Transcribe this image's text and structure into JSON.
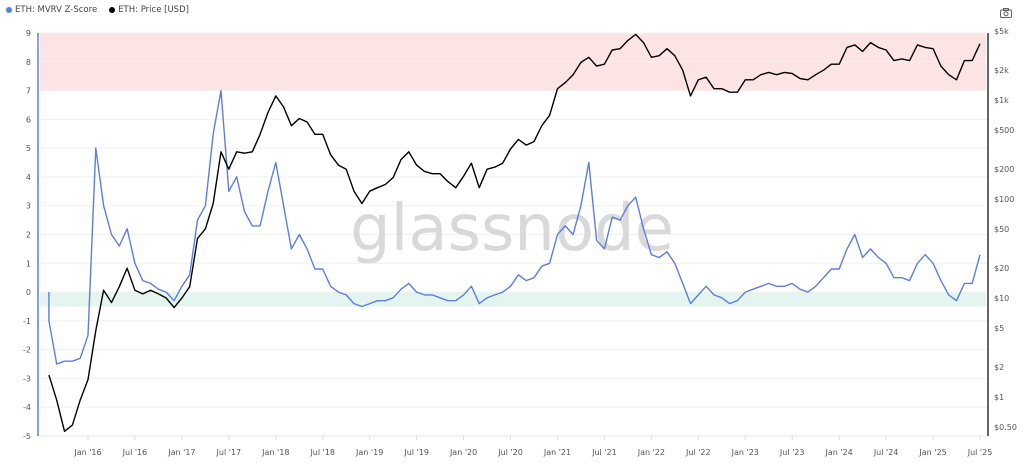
{
  "legend": [
    {
      "label": "ETH: MVRV Z-Score",
      "color": "#5b7ee5"
    },
    {
      "label": "ETH: Price [USD]",
      "color": "#000000"
    }
  ],
  "toolbar": {
    "screenshot_icon": "camera-icon"
  },
  "watermark": "glassnode",
  "chart_data": {
    "type": "line",
    "x_ticks": [
      "Jan '16",
      "Jul '16",
      "Jan '17",
      "Jul '17",
      "Jan '18",
      "Jul '18",
      "Jan '19",
      "Jul '19",
      "Jan '20",
      "Jul '20",
      "Jan '21",
      "Jul '21",
      "Jan '22",
      "Jul '22",
      "Jan '23",
      "Jul '23",
      "Jan '24",
      "Jul '24",
      "Jan '25",
      "Jul '25"
    ],
    "x_tick_years": [
      2016,
      2016.5,
      2017,
      2017.5,
      2018,
      2018.5,
      2019,
      2019.5,
      2020,
      2020.5,
      2021,
      2021.5,
      2022,
      2022.5,
      2023,
      2023.5,
      2024,
      2024.5,
      2025,
      2025.5
    ],
    "left_axis": {
      "range": [
        -5,
        9
      ],
      "ticks": [
        9,
        8,
        7,
        6,
        5,
        4,
        3,
        2,
        1,
        0,
        -1,
        -2,
        -3,
        -4,
        -5
      ]
    },
    "right_axis": {
      "scale": "log",
      "range": [
        0.4,
        5000
      ],
      "ticks": [
        {
          "label": "$5k",
          "value": 5000
        },
        {
          "label": "$2k",
          "value": 2000
        },
        {
          "label": "$1k",
          "value": 1000
        },
        {
          "label": "$500",
          "value": 500
        },
        {
          "label": "$200",
          "value": 200
        },
        {
          "label": "$100",
          "value": 100
        },
        {
          "label": "$50",
          "value": 50
        },
        {
          "label": "$20",
          "value": 20
        },
        {
          "label": "$10",
          "value": 10
        },
        {
          "label": "$5",
          "value": 5
        },
        {
          "label": "$2",
          "value": 2
        },
        {
          "label": "$1",
          "value": 1
        },
        {
          "label": "$0.50",
          "value": 0.5
        }
      ]
    },
    "bands": [
      {
        "from": 7,
        "to": 9,
        "color": "#fde4e4"
      },
      {
        "from": -0.5,
        "to": 0,
        "color": "#e3f5ee"
      }
    ],
    "grid": true,
    "dates": [
      "2015-08",
      "2015-09",
      "2015-10",
      "2015-11",
      "2015-12",
      "2016-01",
      "2016-02",
      "2016-03",
      "2016-04",
      "2016-05",
      "2016-06",
      "2016-07",
      "2016-08",
      "2016-09",
      "2016-10",
      "2016-11",
      "2016-12",
      "2017-01",
      "2017-02",
      "2017-03",
      "2017-04",
      "2017-05",
      "2017-06",
      "2017-07",
      "2017-08",
      "2017-09",
      "2017-10",
      "2017-11",
      "2017-12",
      "2018-01",
      "2018-02",
      "2018-03",
      "2018-04",
      "2018-05",
      "2018-06",
      "2018-07",
      "2018-08",
      "2018-09",
      "2018-10",
      "2018-11",
      "2018-12",
      "2019-01",
      "2019-02",
      "2019-03",
      "2019-04",
      "2019-05",
      "2019-06",
      "2019-07",
      "2019-08",
      "2019-09",
      "2019-10",
      "2019-11",
      "2019-12",
      "2020-01",
      "2020-02",
      "2020-03",
      "2020-04",
      "2020-05",
      "2020-06",
      "2020-07",
      "2020-08",
      "2020-09",
      "2020-10",
      "2020-11",
      "2020-12",
      "2021-01",
      "2021-02",
      "2021-03",
      "2021-04",
      "2021-05",
      "2021-06",
      "2021-07",
      "2021-08",
      "2021-09",
      "2021-10",
      "2021-11",
      "2021-12",
      "2022-01",
      "2022-02",
      "2022-03",
      "2022-04",
      "2022-05",
      "2022-06",
      "2022-07",
      "2022-08",
      "2022-09",
      "2022-10",
      "2022-11",
      "2022-12",
      "2023-01",
      "2023-02",
      "2023-03",
      "2023-04",
      "2023-05",
      "2023-06",
      "2023-07",
      "2023-08",
      "2023-09",
      "2023-10",
      "2023-11",
      "2023-12",
      "2024-01",
      "2024-02",
      "2024-03",
      "2024-04",
      "2024-05",
      "2024-06",
      "2024-07",
      "2024-08",
      "2024-09",
      "2024-10",
      "2024-11",
      "2024-12",
      "2025-01",
      "2025-02",
      "2025-03",
      "2025-04",
      "2025-05",
      "2025-06",
      "2025-07"
    ],
    "series": [
      {
        "name": "ETH: MVRV Z-Score",
        "axis": "left",
        "color": "#5b7ee5",
        "values": [
          -1.0,
          -2.5,
          -2.4,
          -2.4,
          -2.3,
          -1.5,
          5.0,
          3.0,
          2.0,
          1.6,
          2.2,
          1.0,
          0.4,
          0.3,
          0.1,
          0.0,
          -0.3,
          0.2,
          0.6,
          2.5,
          3.0,
          5.5,
          7.0,
          3.5,
          4.0,
          2.8,
          2.3,
          2.3,
          3.5,
          4.5,
          3.0,
          1.5,
          2.0,
          1.5,
          0.8,
          0.8,
          0.2,
          0.0,
          -0.1,
          -0.4,
          -0.5,
          -0.4,
          -0.3,
          -0.3,
          -0.2,
          0.1,
          0.3,
          0.0,
          -0.1,
          -0.1,
          -0.2,
          -0.3,
          -0.3,
          -0.1,
          0.2,
          -0.4,
          -0.2,
          -0.1,
          0.0,
          0.2,
          0.6,
          0.4,
          0.5,
          0.9,
          1.0,
          2.0,
          2.3,
          2.0,
          3.0,
          4.5,
          1.8,
          1.5,
          2.6,
          2.5,
          3.0,
          3.3,
          2.2,
          1.3,
          1.2,
          1.4,
          1.0,
          0.3,
          -0.4,
          -0.1,
          0.2,
          -0.1,
          -0.2,
          -0.4,
          -0.3,
          0.0,
          0.1,
          0.2,
          0.3,
          0.2,
          0.2,
          0.3,
          0.1,
          0.0,
          0.2,
          0.5,
          0.8,
          0.8,
          1.5,
          2.0,
          1.2,
          1.5,
          1.2,
          1.0,
          0.5,
          0.5,
          0.4,
          1.0,
          1.3,
          1.0,
          0.4,
          -0.1,
          -0.3,
          0.3,
          0.3,
          1.3
        ]
      },
      {
        "name": "ETH: Price [USD]",
        "axis": "right",
        "color": "#000000",
        "values": [
          1.67,
          0.93,
          0.45,
          0.52,
          0.93,
          1.5,
          4.7,
          12,
          9,
          13,
          20,
          12,
          11,
          12,
          11,
          10,
          8,
          10,
          13,
          40,
          50,
          90,
          300,
          200,
          300,
          290,
          300,
          450,
          750,
          1100,
          850,
          550,
          650,
          600,
          450,
          450,
          280,
          220,
          200,
          120,
          90,
          120,
          130,
          140,
          165,
          250,
          300,
          220,
          190,
          180,
          180,
          150,
          130,
          170,
          230,
          130,
          200,
          210,
          230,
          320,
          400,
          350,
          380,
          550,
          700,
          1300,
          1500,
          1800,
          2400,
          2700,
          2200,
          2300,
          3200,
          3300,
          4000,
          4600,
          3800,
          2700,
          2800,
          3300,
          2800,
          2000,
          1100,
          1600,
          1700,
          1300,
          1300,
          1200,
          1200,
          1600,
          1600,
          1800,
          1900,
          1800,
          1900,
          1850,
          1650,
          1600,
          1800,
          2000,
          2300,
          2300,
          3400,
          3600,
          3100,
          3800,
          3400,
          3200,
          2500,
          2600,
          2500,
          3600,
          3400,
          3300,
          2200,
          1800,
          1600,
          2500,
          2500,
          3700
        ]
      }
    ]
  }
}
